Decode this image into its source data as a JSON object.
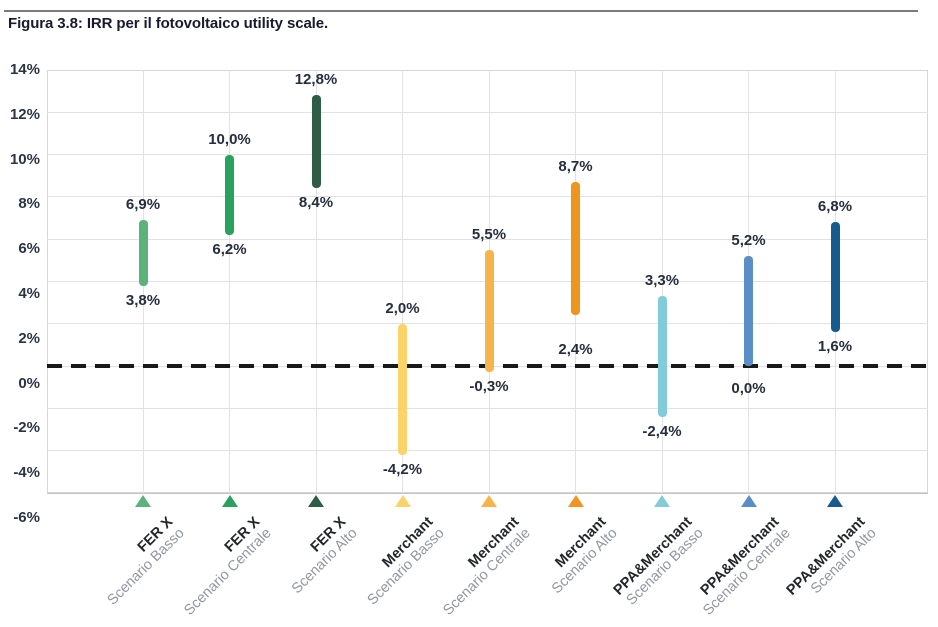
{
  "page": {
    "title": "Figura 3.8: IRR per il fotovoltaico utility scale."
  },
  "chart_data": {
    "type": "bar",
    "subtype": "floating-range-bar",
    "title": "Figura 3.8: IRR per il fotovoltaico utility scale.",
    "xlabel": "",
    "ylabel": "",
    "ylim": [
      -6,
      14
    ],
    "ytick_step": 2,
    "ytick_labels": [
      "14%",
      "12%",
      "10%",
      "8%",
      "6%",
      "4%",
      "2%",
      "0%",
      "-2%",
      "-4%",
      "-6%"
    ],
    "grid": true,
    "legend": false,
    "reference_line": {
      "value": 0,
      "style": "dashed",
      "color": "#191919"
    },
    "marker_row": "colored triangles under axis, one per category",
    "series": [
      {
        "group": "FER X",
        "scenario": "Scenario Basso",
        "low": 3.8,
        "high": 6.9,
        "low_label": "3,8%",
        "high_label": "6,9%",
        "low_label_dy": 0,
        "color": "#5bb27b"
      },
      {
        "group": "FER X",
        "scenario": "Scenario Centrale",
        "low": 6.2,
        "high": 10.0,
        "low_label": "6,2%",
        "high_label": "10,0%",
        "low_label_dy": 0,
        "color": "#2aa25f"
      },
      {
        "group": "FER X",
        "scenario": "Scenario Alto",
        "low": 8.4,
        "high": 12.8,
        "low_label": "8,4%",
        "high_label": "12,8%",
        "low_label_dy": 0,
        "color": "#2f5c45"
      },
      {
        "group": "Merchant",
        "scenario": "Scenario Basso",
        "low": -4.2,
        "high": 2.0,
        "low_label": "-4,2%",
        "high_label": "2,0%",
        "low_label_dy": 0,
        "color": "#fbd469"
      },
      {
        "group": "Merchant",
        "scenario": "Scenario Centrale",
        "low": -0.3,
        "high": 5.5,
        "low_label": "-0,3%",
        "high_label": "5,5%",
        "low_label_dy": 0,
        "color": "#f7b44c"
      },
      {
        "group": "Merchant",
        "scenario": "Scenario Alto",
        "low": 2.4,
        "high": 8.7,
        "low_label": "2,4%",
        "high_label": "8,7%",
        "low_label_dy": 20,
        "color": "#ef941e"
      },
      {
        "group": "PPA&Merchant",
        "scenario": "Scenario Basso",
        "low": -2.4,
        "high": 3.3,
        "low_label": "-2,4%",
        "high_label": "3,3%",
        "low_label_dy": 0,
        "color": "#82cbd8"
      },
      {
        "group": "PPA&Merchant",
        "scenario": "Scenario Centrale",
        "low": 0.0,
        "high": 5.2,
        "low_label": "0,0%",
        "high_label": "5,2%",
        "low_label_dy": 8,
        "color": "#5b8ec7"
      },
      {
        "group": "PPA&Merchant",
        "scenario": "Scenario Alto",
        "low": 1.6,
        "high": 6.8,
        "low_label": "1,6%",
        "high_label": "6,8%",
        "low_label_dy": 0,
        "color": "#175a8c"
      }
    ]
  }
}
